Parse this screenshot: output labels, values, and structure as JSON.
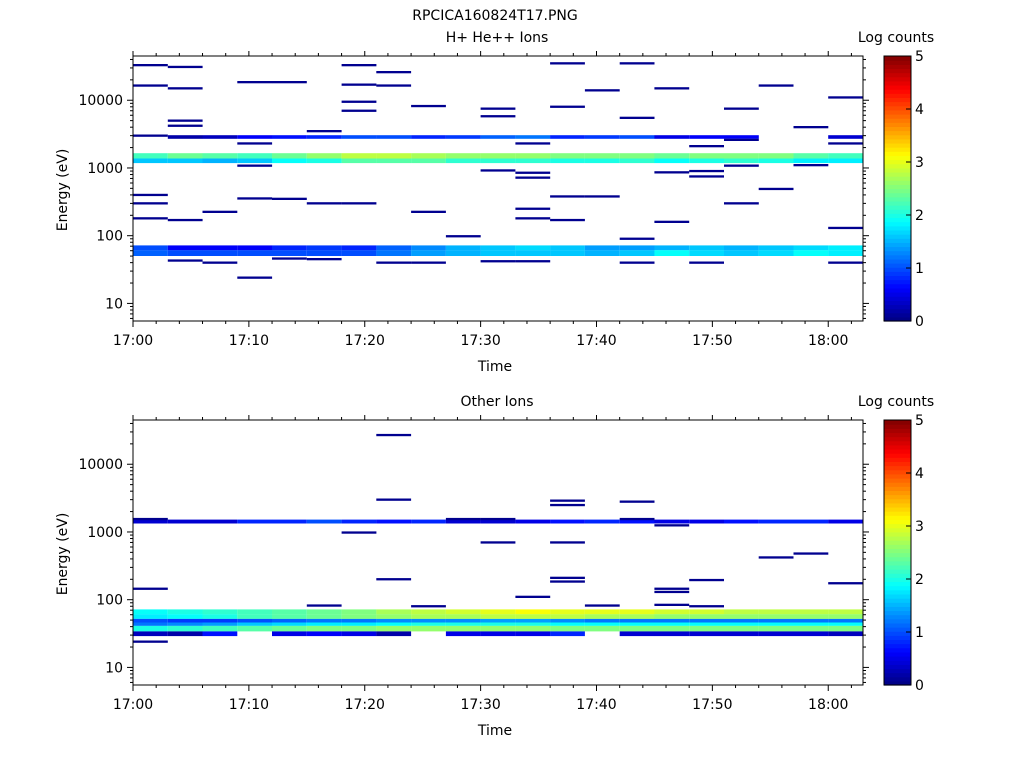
{
  "figure_title": "RPCICA160824T17.PNG",
  "chart_data": [
    {
      "type": "heatmap",
      "title": "H+ He++ Ions",
      "xlabel": "Time",
      "ylabel": "Energy (eV)",
      "y_scale": "log",
      "xlim": [
        "17:00",
        "18:03"
      ],
      "ylim": [
        5.5,
        45000
      ],
      "x_ticks": [
        "17:00",
        "17:10",
        "17:20",
        "17:30",
        "17:40",
        "17:50",
        "18:00"
      ],
      "y_ticks": [
        "10",
        "100",
        "1000",
        "10000"
      ],
      "colorbar": {
        "label": "Log counts",
        "range": [
          0,
          5
        ],
        "ticks": [
          "0",
          "1",
          "2",
          "3",
          "4",
          "5"
        ],
        "colormap": "jet"
      },
      "time_bins": [
        "17:00",
        "17:03",
        "17:06",
        "17:09",
        "17:12",
        "17:15",
        "17:18",
        "17:21",
        "17:24",
        "17:27",
        "17:30",
        "17:33",
        "17:36",
        "17:39",
        "17:42",
        "17:45",
        "17:48",
        "17:51",
        "17:54",
        "17:57",
        "18:00"
      ],
      "bands": [
        {
          "e_low": 1380,
          "e_high": 1650,
          "values": [
            2.2,
            2.4,
            2.3,
            2.2,
            2.4,
            2.6,
            2.8,
            2.8,
            2.7,
            2.6,
            2.6,
            2.6,
            2.5,
            2.5,
            2.5,
            2.4,
            2.5,
            2.5,
            2.5,
            2.3,
            2.2
          ]
        },
        {
          "e_low": 1180,
          "e_high": 1380,
          "values": [
            1.6,
            1.6,
            1.5,
            1.6,
            1.9,
            2.0,
            2.3,
            2.3,
            2.3,
            2.1,
            2.1,
            2.1,
            2.0,
            2.0,
            2.1,
            1.9,
            2.0,
            2.1,
            2.0,
            1.8,
            1.8
          ]
        },
        {
          "e_low": 2700,
          "e_high": 3050,
          "values": [
            0,
            0.2,
            0.3,
            0.6,
            0.7,
            0.8,
            1.0,
            1.0,
            0.8,
            0.9,
            1.1,
            1.2,
            0.8,
            0.9,
            1.0,
            0.5,
            0.6,
            0.6,
            0,
            0,
            0.4
          ]
        },
        {
          "e_low": 61,
          "e_high": 72,
          "values": [
            1.0,
            0.6,
            0.6,
            0.6,
            0.8,
            0.9,
            0.8,
            1.1,
            1.3,
            1.5,
            1.6,
            1.7,
            1.6,
            1.4,
            1.4,
            1.5,
            1.6,
            1.5,
            1.6,
            1.7,
            1.8
          ]
        },
        {
          "e_low": 50,
          "e_high": 61,
          "values": [
            1.1,
            1.0,
            1.0,
            1.0,
            1.0,
            1.0,
            1.0,
            1.2,
            1.4,
            1.5,
            1.6,
            1.6,
            1.6,
            1.5,
            1.6,
            1.9,
            1.7,
            1.6,
            1.7,
            1.9,
            1.8
          ]
        }
      ],
      "hits": [
        {
          "t": "17:00",
          "e": 33000
        },
        {
          "t": "17:00",
          "e": 16500
        },
        {
          "t": "17:03",
          "e": 31000
        },
        {
          "t": "17:03",
          "e": 15000
        },
        {
          "t": "17:03",
          "e": 5000
        },
        {
          "t": "17:03",
          "e": 4200
        },
        {
          "t": "17:09",
          "e": 18500
        },
        {
          "t": "17:12",
          "e": 18500
        },
        {
          "t": "17:18",
          "e": 33000
        },
        {
          "t": "17:18",
          "e": 17000
        },
        {
          "t": "17:18",
          "e": 9500
        },
        {
          "t": "17:18",
          "e": 7000
        },
        {
          "t": "17:21",
          "e": 26000
        },
        {
          "t": "17:21",
          "e": 16500
        },
        {
          "t": "17:24",
          "e": 8200
        },
        {
          "t": "17:30",
          "e": 7500
        },
        {
          "t": "17:30",
          "e": 5800
        },
        {
          "t": "17:36",
          "e": 8000
        },
        {
          "t": "17:36",
          "e": 35000
        },
        {
          "t": "17:39",
          "e": 14000
        },
        {
          "t": "17:42",
          "e": 35000
        },
        {
          "t": "17:42",
          "e": 5500
        },
        {
          "t": "17:45",
          "e": 15000
        },
        {
          "t": "17:51",
          "e": 7500
        },
        {
          "t": "17:54",
          "e": 16500
        },
        {
          "t": "17:57",
          "e": 4000
        },
        {
          "t": "18:00",
          "e": 11000
        },
        {
          "t": "17:00",
          "e": 3000
        },
        {
          "t": "17:09",
          "e": 2300
        },
        {
          "t": "17:15",
          "e": 3500
        },
        {
          "t": "17:33",
          "e": 2300
        },
        {
          "t": "17:48",
          "e": 2100
        },
        {
          "t": "17:51",
          "e": 2600
        },
        {
          "t": "18:00",
          "e": 2300
        },
        {
          "t": "17:09",
          "e": 1080
        },
        {
          "t": "17:30",
          "e": 920
        },
        {
          "t": "17:33",
          "e": 850
        },
        {
          "t": "17:33",
          "e": 720
        },
        {
          "t": "17:45",
          "e": 860
        },
        {
          "t": "17:48",
          "e": 900
        },
        {
          "t": "17:48",
          "e": 750
        },
        {
          "t": "17:51",
          "e": 1080
        },
        {
          "t": "17:57",
          "e": 1100
        },
        {
          "t": "17:54",
          "e": 490
        },
        {
          "t": "17:51",
          "e": 300
        },
        {
          "t": "17:00",
          "e": 400
        },
        {
          "t": "17:00",
          "e": 300
        },
        {
          "t": "17:00",
          "e": 180
        },
        {
          "t": "17:03",
          "e": 170
        },
        {
          "t": "17:06",
          "e": 225
        },
        {
          "t": "17:09",
          "e": 355
        },
        {
          "t": "17:12",
          "e": 350
        },
        {
          "t": "17:15",
          "e": 300
        },
        {
          "t": "17:18",
          "e": 300
        },
        {
          "t": "17:24",
          "e": 225
        },
        {
          "t": "17:33",
          "e": 250
        },
        {
          "t": "17:33",
          "e": 180
        },
        {
          "t": "17:36",
          "e": 380
        },
        {
          "t": "17:36",
          "e": 170
        },
        {
          "t": "17:39",
          "e": 380
        },
        {
          "t": "17:45",
          "e": 160
        },
        {
          "t": "18:00",
          "e": 130
        },
        {
          "t": "17:27",
          "e": 98
        },
        {
          "t": "17:42",
          "e": 90
        },
        {
          "t": "17:03",
          "e": 43
        },
        {
          "t": "17:06",
          "e": 40
        },
        {
          "t": "17:09",
          "e": 24
        },
        {
          "t": "17:12",
          "e": 46
        },
        {
          "t": "17:15",
          "e": 45
        },
        {
          "t": "17:21",
          "e": 40
        },
        {
          "t": "17:24",
          "e": 40
        },
        {
          "t": "17:30",
          "e": 42
        },
        {
          "t": "17:33",
          "e": 42
        },
        {
          "t": "17:42",
          "e": 40
        },
        {
          "t": "17:48",
          "e": 40
        },
        {
          "t": "18:00",
          "e": 40
        }
      ]
    },
    {
      "type": "heatmap",
      "title": "Other Ions",
      "xlabel": "Time",
      "ylabel": "Energy (eV)",
      "y_scale": "log",
      "xlim": [
        "17:00",
        "18:03"
      ],
      "ylim": [
        5.5,
        45000
      ],
      "x_ticks": [
        "17:00",
        "17:10",
        "17:20",
        "17:30",
        "17:40",
        "17:50",
        "18:00"
      ],
      "y_ticks": [
        "10",
        "100",
        "1000",
        "10000"
      ],
      "colorbar": {
        "label": "Log counts",
        "range": [
          0,
          5
        ],
        "ticks": [
          "0",
          "1",
          "2",
          "3",
          "4",
          "5"
        ],
        "colormap": "jet"
      },
      "time_bins": [
        "17:00",
        "17:03",
        "17:06",
        "17:09",
        "17:12",
        "17:15",
        "17:18",
        "17:21",
        "17:24",
        "17:27",
        "17:30",
        "17:33",
        "17:36",
        "17:39",
        "17:42",
        "17:45",
        "17:48",
        "17:51",
        "17:54",
        "17:57",
        "18:00"
      ],
      "bands": [
        {
          "e_low": 61,
          "e_high": 72,
          "values": [
            1.9,
            2.0,
            2.1,
            2.2,
            2.3,
            2.4,
            2.5,
            2.7,
            2.8,
            2.9,
            3.0,
            3.1,
            3.0,
            3.0,
            3.0,
            2.9,
            2.9,
            2.8,
            2.8,
            2.8,
            2.8
          ]
        },
        {
          "e_low": 52,
          "e_high": 61,
          "values": [
            1.8,
            1.9,
            2.0,
            2.2,
            2.3,
            2.4,
            2.5,
            2.6,
            2.7,
            2.7,
            2.8,
            2.8,
            2.8,
            2.7,
            2.7,
            2.6,
            2.6,
            2.6,
            2.6,
            2.6,
            2.6
          ]
        },
        {
          "e_low": 46,
          "e_high": 52,
          "values": [
            1.0,
            0.9,
            0.9,
            1.0,
            1.1,
            1.2,
            1.2,
            1.3,
            1.3,
            1.3,
            1.4,
            1.4,
            1.3,
            1.2,
            1.2,
            1.2,
            1.2,
            1.2,
            1.2,
            1.2,
            1.2
          ]
        },
        {
          "e_low": 41,
          "e_high": 46,
          "values": [
            1.2,
            1.3,
            1.4,
            1.6,
            1.7,
            1.8,
            1.8,
            1.9,
            2.0,
            2.0,
            2.0,
            2.0,
            1.9,
            1.9,
            1.9,
            1.9,
            1.9,
            1.9,
            1.9,
            1.9,
            1.9
          ]
        },
        {
          "e_low": 34,
          "e_high": 41,
          "values": [
            2.0,
            2.1,
            2.2,
            2.3,
            2.4,
            2.5,
            2.5,
            2.6,
            2.6,
            2.6,
            2.6,
            2.6,
            2.5,
            2.5,
            2.5,
            2.5,
            2.5,
            2.5,
            2.5,
            2.5,
            2.5
          ]
        },
        {
          "e_low": 29,
          "e_high": 34,
          "values": [
            0.3,
            0.2,
            0.7,
            0.0,
            0.5,
            0.6,
            0.5,
            0.2,
            0.0,
            0.5,
            0.5,
            0.5,
            0.8,
            0.0,
            0.4,
            0.4,
            0.4,
            0.4,
            0.4,
            0.4,
            0.3
          ]
        },
        {
          "e_low": 1330,
          "e_high": 1520,
          "values": [
            0.4,
            0.4,
            0.4,
            0.8,
            0.8,
            1.0,
            0.8,
            0.7,
            0.8,
            0.4,
            0.4,
            0.5,
            0.7,
            0.8,
            0.7,
            0.5,
            0.5,
            0.7,
            0.8,
            0.8,
            0.5
          ]
        }
      ],
      "hits": [
        {
          "t": "17:00",
          "e": 24
        },
        {
          "t": "17:00",
          "e": 1550
        },
        {
          "t": "17:00",
          "e": 145
        },
        {
          "t": "17:18",
          "e": 980
        },
        {
          "t": "17:21",
          "e": 27000
        },
        {
          "t": "17:21",
          "e": 3000
        },
        {
          "t": "17:21",
          "e": 200
        },
        {
          "t": "17:15",
          "e": 82
        },
        {
          "t": "17:24",
          "e": 80
        },
        {
          "t": "17:27",
          "e": 1550
        },
        {
          "t": "17:30",
          "e": 1550
        },
        {
          "t": "17:30",
          "e": 700
        },
        {
          "t": "17:33",
          "e": 110
        },
        {
          "t": "17:36",
          "e": 2900
        },
        {
          "t": "17:36",
          "e": 2500
        },
        {
          "t": "17:36",
          "e": 700
        },
        {
          "t": "17:36",
          "e": 210
        },
        {
          "t": "17:36",
          "e": 185
        },
        {
          "t": "17:39",
          "e": 82
        },
        {
          "t": "17:42",
          "e": 2800
        },
        {
          "t": "17:42",
          "e": 1550
        },
        {
          "t": "17:45",
          "e": 1250
        },
        {
          "t": "17:45",
          "e": 145
        },
        {
          "t": "17:45",
          "e": 130
        },
        {
          "t": "17:45",
          "e": 84
        },
        {
          "t": "17:48",
          "e": 80
        },
        {
          "t": "17:48",
          "e": 195
        },
        {
          "t": "17:54",
          "e": 420
        },
        {
          "t": "17:57",
          "e": 480
        },
        {
          "t": "18:00",
          "e": 175
        }
      ]
    }
  ]
}
